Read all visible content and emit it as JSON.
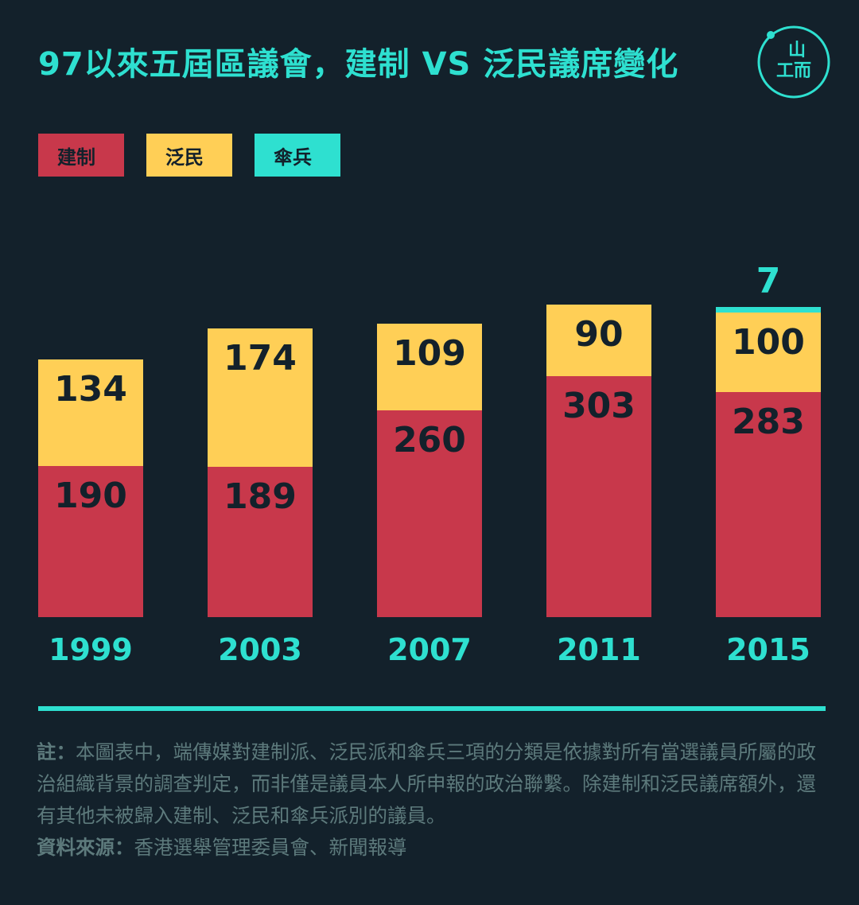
{
  "title": "97以來五屆區議會，建制 VS 泛民議席變化",
  "logo": {
    "text_top": "山",
    "text_bottom": "工而"
  },
  "colors": {
    "background": "#13212b",
    "accent": "#2ee0d0",
    "pro_establishment": "#c8384b",
    "pan_democrat": "#ffcf56",
    "umbrella": "#2ee0d0",
    "value_text": "#13212b",
    "note_text": "#5d7a7c"
  },
  "chart_data": {
    "type": "bar",
    "stacked": true,
    "categories": [
      "1999",
      "2003",
      "2007",
      "2011",
      "2015"
    ],
    "series": [
      {
        "name": "建制",
        "values": [
          190,
          189,
          260,
          303,
          283
        ],
        "color": "#c8384b"
      },
      {
        "name": "泛民",
        "values": [
          134,
          174,
          109,
          90,
          100
        ],
        "color": "#ffcf56"
      },
      {
        "name": "傘兵",
        "values": [
          0,
          0,
          0,
          0,
          7
        ],
        "color": "#2ee0d0"
      }
    ],
    "title": "97以來五屆區議會，建制 VS 泛民議席變化",
    "xlabel": "",
    "ylabel": "",
    "grid": false,
    "legend_position": "top-left"
  },
  "notes": {
    "note_label": "註：",
    "note_text": "本圖表中，端傳媒對建制派、泛民派和傘兵三項的分類是依據對所有當選議員所屬的政治組織背景的調查判定，而非僅是議員本人所申報的政治聯繫。除建制和泛民議席額外，還有其他未被歸入建制、泛民和傘兵派別的議員。",
    "source_label": "資料來源：",
    "source_text": "香港選舉管理委員會、新聞報導"
  }
}
